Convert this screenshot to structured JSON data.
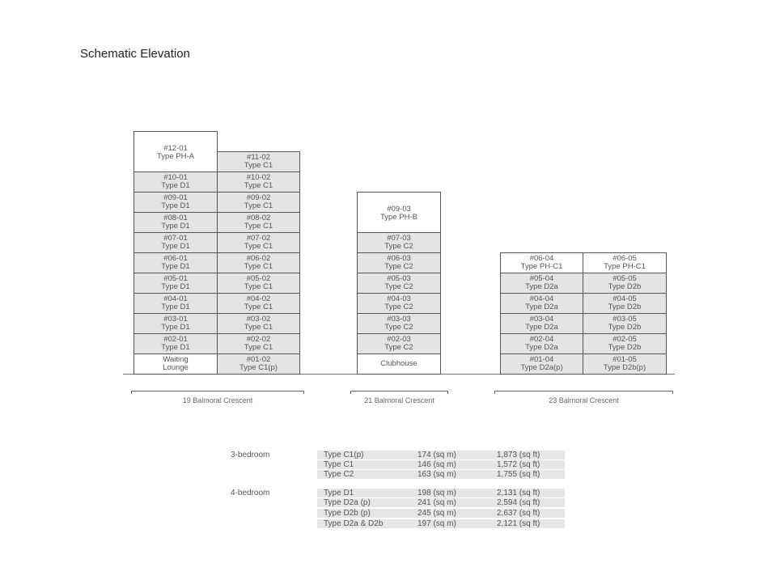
{
  "title": "Schematic Elevation",
  "buildings": [
    {
      "label": "19 Balmoral Crescent",
      "columns": [
        {
          "units": [
            [
              "#12-01",
              "Type PH-A"
            ],
            [
              "#10-01",
              "Type D1"
            ],
            [
              "#09-01",
              "Type D1"
            ],
            [
              "#08-01",
              "Type D1"
            ],
            [
              "#07-01",
              "Type D1"
            ],
            [
              "#06-01",
              "Type D1"
            ],
            [
              "#05-01",
              "Type D1"
            ],
            [
              "#04-01",
              "Type D1"
            ],
            [
              "#03-01",
              "Type D1"
            ],
            [
              "#02-01",
              "Type D1"
            ],
            [
              "Waiting",
              "Lounge"
            ]
          ]
        },
        {
          "units": [
            [
              "#11-02",
              "Type C1"
            ],
            [
              "#10-02",
              "Type C1"
            ],
            [
              "#09-02",
              "Type C1"
            ],
            [
              "#08-02",
              "Type C1"
            ],
            [
              "#07-02",
              "Type C1"
            ],
            [
              "#06-02",
              "Type C1"
            ],
            [
              "#05-02",
              "Type C1"
            ],
            [
              "#04-02",
              "Type C1"
            ],
            [
              "#03-02",
              "Type C1"
            ],
            [
              "#02-02",
              "Type C1"
            ],
            [
              "#01-02",
              "Type C1(p)"
            ]
          ]
        }
      ]
    },
    {
      "label": "21 Balmoral Crescent",
      "columns": [
        {
          "units": [
            [
              "#09-03",
              "Type PH-B"
            ],
            [
              "#07-03",
              "Type C2"
            ],
            [
              "#06-03",
              "Type C2"
            ],
            [
              "#05-03",
              "Type C2"
            ],
            [
              "#04-03",
              "Type C2"
            ],
            [
              "#03-03",
              "Type C2"
            ],
            [
              "#02-03",
              "Type C2"
            ],
            [
              "Clubhouse",
              ""
            ]
          ]
        }
      ]
    },
    {
      "label": "23 Balmoral Crescent",
      "columns": [
        {
          "units": [
            [
              "#06-04",
              "Type PH-C1"
            ],
            [
              "#05-04",
              "Type D2a"
            ],
            [
              "#04-04",
              "Type D2a"
            ],
            [
              "#03-04",
              "Type D2a"
            ],
            [
              "#02-04",
              "Type D2a"
            ],
            [
              "#01-04",
              "Type D2a(p)"
            ]
          ]
        },
        {
          "units": [
            [
              "#06-05",
              "Type PH-C1"
            ],
            [
              "#05-05",
              "Type D2b"
            ],
            [
              "#04-05",
              "Type D2b"
            ],
            [
              "#03-05",
              "Type D2b"
            ],
            [
              "#02-05",
              "Type D2b"
            ],
            [
              "#01-05",
              "Type D2b(p)"
            ]
          ]
        }
      ]
    }
  ],
  "areas": [
    {
      "category": "3-bedroom",
      "rows": [
        [
          "Type C1(p)",
          "174 (sq m)",
          "1,873 (sq ft)"
        ],
        [
          "Type C1",
          "146 (sq m)",
          "1,572 (sq ft)"
        ],
        [
          "Type C2",
          "163 (sq m)",
          "1,755 (sq ft)"
        ]
      ]
    },
    {
      "category": "4-bedroom",
      "rows": [
        [
          "Type D1",
          "198 (sq m)",
          "2,131 (sq ft)"
        ],
        [
          "Type D2a (p)",
          "241 (sq m)",
          "2,594 (sq ft)"
        ],
        [
          "Type D2b (p)",
          "245 (sq m)",
          "2,637 (sq ft)"
        ],
        [
          "Type D2a & D2b",
          "197 (sq m)",
          "2,121 (sq ft)"
        ]
      ]
    }
  ]
}
